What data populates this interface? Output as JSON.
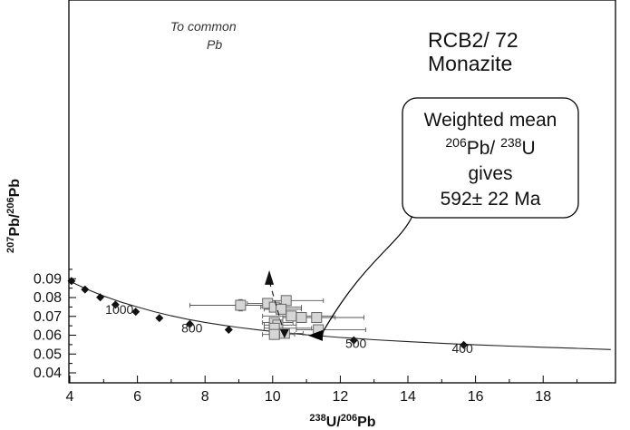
{
  "chart_data": {
    "type": "scatter",
    "title_lines": [
      "RCB2/ 72",
      "Monazite"
    ],
    "xlabel": {
      "sup": "238",
      "base1": "U/",
      "sup2": "206",
      "base2": "Pb"
    },
    "ylabel": {
      "sup": "207",
      "base1": "Pb/",
      "sup2": "206",
      "base2": "Pb"
    },
    "xlim": [
      4,
      20
    ],
    "ylim": [
      0.04,
      0.095
    ],
    "x_ticks": [
      4,
      6,
      8,
      10,
      12,
      14,
      16,
      18
    ],
    "x_tick_labels": [
      "4",
      "6",
      "8",
      "10",
      "12",
      "14",
      "16",
      "18"
    ],
    "y_ticks": [
      0.04,
      0.05,
      0.06,
      0.07,
      0.08,
      0.09
    ],
    "y_tick_labels": [
      "0.04",
      "0.05",
      "0.06",
      "0.07",
      "0.08",
      "0.09"
    ],
    "concordia_curve": [
      [
        4.0,
        0.0887
      ],
      [
        4.5,
        0.0845
      ],
      [
        5.0,
        0.0808
      ],
      [
        5.5,
        0.0777
      ],
      [
        6.0,
        0.075
      ],
      [
        6.5,
        0.0725
      ],
      [
        7.0,
        0.0703
      ],
      [
        7.5,
        0.0684
      ],
      [
        8.0,
        0.0668
      ],
      [
        8.5,
        0.0654
      ],
      [
        9.0,
        0.0641
      ],
      [
        9.5,
        0.063
      ],
      [
        10.0,
        0.062
      ],
      [
        10.5,
        0.0611
      ],
      [
        11.0,
        0.0602
      ],
      [
        11.5,
        0.0595
      ],
      [
        12.0,
        0.0588
      ],
      [
        12.5,
        0.0582
      ],
      [
        13.0,
        0.0576
      ],
      [
        14.0,
        0.0566
      ],
      [
        15.0,
        0.0557
      ],
      [
        16.0,
        0.0549
      ],
      [
        17.0,
        0.0542
      ],
      [
        18.0,
        0.0536
      ],
      [
        19.0,
        0.053
      ],
      [
        20.0,
        0.0524
      ]
    ],
    "concordia_markers": [
      [
        4.05,
        0.0888
      ],
      [
        4.45,
        0.0843
      ],
      [
        4.9,
        0.0801
      ],
      [
        5.35,
        0.0762
      ],
      [
        5.95,
        0.0725
      ],
      [
        6.65,
        0.0691
      ],
      [
        7.55,
        0.0659
      ],
      [
        8.7,
        0.0629
      ],
      [
        12.4,
        0.0573
      ],
      [
        15.65,
        0.0548
      ]
    ],
    "age_labels": [
      {
        "text": "1000",
        "x": 5.05,
        "y": 0.0713
      },
      {
        "text": "800",
        "x": 7.3,
        "y": 0.0615
      },
      {
        "text": "500",
        "x": 12.15,
        "y": 0.0532
      },
      {
        "text": "400",
        "x": 15.3,
        "y": 0.0505
      }
    ],
    "points": [
      {
        "x": 10.4,
        "y": 0.0784,
        "xerr": [
          0.5,
          1.1
        ],
        "yerr": 0.0015
      },
      {
        "x": 9.85,
        "y": 0.0769,
        "xerr": [
          0.6,
          0.6
        ],
        "yerr": 0.0015
      },
      {
        "x": 9.05,
        "y": 0.0759,
        "xerr": [
          1.5,
          0.7
        ],
        "yerr": 0.003
      },
      {
        "x": 10.05,
        "y": 0.0749,
        "xerr": [
          0.4,
          0.8
        ],
        "yerr": 0.0015
      },
      {
        "x": 10.25,
        "y": 0.0738,
        "xerr": [
          0.5,
          0.6
        ],
        "yerr": 0.002
      },
      {
        "x": 10.55,
        "y": 0.0702,
        "xerr": [
          0.85,
          1.25
        ],
        "yerr": 0.0015
      },
      {
        "x": 10.85,
        "y": 0.0694,
        "xerr": [
          0.55,
          1.0
        ],
        "yerr": 0.0015
      },
      {
        "x": 11.3,
        "y": 0.0694,
        "xerr": [
          0.7,
          1.4
        ],
        "yerr": 0.0015
      },
      {
        "x": 10.05,
        "y": 0.0667,
        "xerr": [
          0.35,
          0.55
        ],
        "yerr": 0.0015
      },
      {
        "x": 10.15,
        "y": 0.0654,
        "xerr": [
          0.4,
          0.55
        ],
        "yerr": 0.0015
      },
      {
        "x": 10.05,
        "y": 0.0637,
        "xerr": [
          0.3,
          1.1
        ],
        "yerr": 0.0015
      },
      {
        "x": 11.35,
        "y": 0.0629,
        "xerr": [
          0.65,
          1.4
        ],
        "yerr": 0.001
      },
      {
        "x": 10.35,
        "y": 0.061,
        "xerr": [
          0.45,
          0.55
        ],
        "yerr": 0.001
      },
      {
        "x": 10.05,
        "y": 0.0604,
        "xerr": [
          0.35,
          0.6
        ],
        "yerr": 0.001
      }
    ],
    "common_pb_arrow": {
      "from": [
        10.35,
        0.0603
      ],
      "to": [
        9.9,
        0.0945
      ]
    },
    "common_pb_label_lines": [
      "To common",
      "Pb"
    ],
    "callout_arrow_target": [
      11.05,
      0.0598
    ],
    "callout_lines": [
      "Weighted mean",
      "206Pb/ 238U",
      "gives",
      "592± 22 Ma"
    ],
    "callout_rows": [
      {
        "base": "Weighted mean"
      },
      {
        "sup1": "206",
        "base1": "Pb/ ",
        "sup2": "238",
        "base2": "U"
      },
      {
        "base": "gives"
      },
      {
        "base": "592± 22 Ma"
      }
    ]
  }
}
